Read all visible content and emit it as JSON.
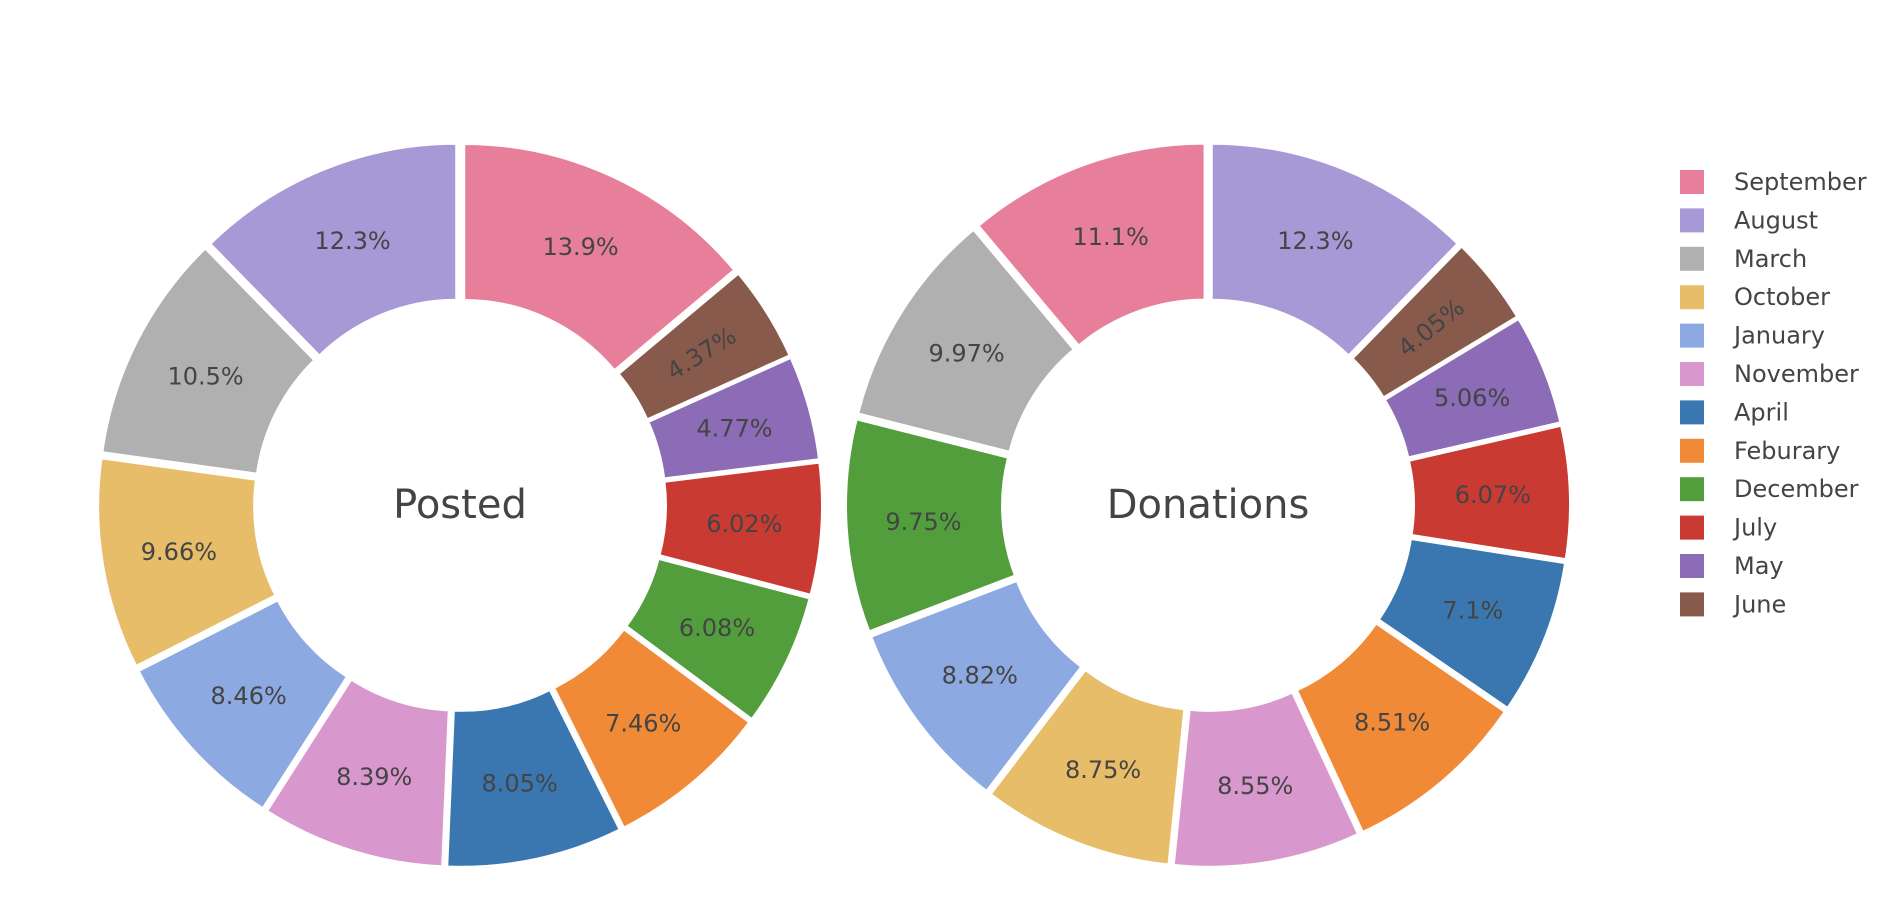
{
  "chart_data": [
    {
      "type": "pie",
      "hole": true,
      "title": "Posted",
      "slices": [
        {
          "label": "September",
          "value": 13.9,
          "text": "13.9%",
          "color": "#e87f9a"
        },
        {
          "label": "June",
          "value": 4.37,
          "text": "4.37%",
          "color": "#875a4c"
        },
        {
          "label": "May",
          "value": 4.77,
          "text": "4.77%",
          "color": "#8c6bb7"
        },
        {
          "label": "July",
          "value": 6.02,
          "text": "6.02%",
          "color": "#c93a32"
        },
        {
          "label": "December",
          "value": 6.08,
          "text": "6.08%",
          "color": "#529e3c"
        },
        {
          "label": "Feburary",
          "value": 7.46,
          "text": "7.46%",
          "color": "#f08a36"
        },
        {
          "label": "April",
          "value": 8.05,
          "text": "8.05%",
          "color": "#3a77b0"
        },
        {
          "label": "November",
          "value": 8.39,
          "text": "8.39%",
          "color": "#d897cd"
        },
        {
          "label": "January",
          "value": 8.46,
          "text": "8.46%",
          "color": "#8ca9e2"
        },
        {
          "label": "October",
          "value": 9.66,
          "text": "9.66%",
          "color": "#e7bd69"
        },
        {
          "label": "March",
          "value": 10.5,
          "text": "10.5%",
          "color": "#b0b0b0"
        },
        {
          "label": "August",
          "value": 12.3,
          "text": "12.3%",
          "color": "#a798d6"
        }
      ]
    },
    {
      "type": "pie",
      "hole": true,
      "title": "Donations",
      "slices": [
        {
          "label": "August",
          "value": 12.3,
          "text": "12.3%",
          "color": "#a798d6"
        },
        {
          "label": "June",
          "value": 4.05,
          "text": "4.05%",
          "color": "#875a4c"
        },
        {
          "label": "May",
          "value": 5.06,
          "text": "5.06%",
          "color": "#8c6bb7"
        },
        {
          "label": "July",
          "value": 6.07,
          "text": "6.07%",
          "color": "#c93a32"
        },
        {
          "label": "April",
          "value": 7.1,
          "text": "7.1%",
          "color": "#3a77b0"
        },
        {
          "label": "Feburary",
          "value": 8.51,
          "text": "8.51%",
          "color": "#f08a36"
        },
        {
          "label": "November",
          "value": 8.55,
          "text": "8.55%",
          "color": "#d897cd"
        },
        {
          "label": "October",
          "value": 8.75,
          "text": "8.75%",
          "color": "#e7bd69"
        },
        {
          "label": "January",
          "value": 8.82,
          "text": "8.82%",
          "color": "#8ca9e2"
        },
        {
          "label": "December",
          "value": 9.75,
          "text": "9.75%",
          "color": "#529e3c"
        },
        {
          "label": "March",
          "value": 9.97,
          "text": "9.97%",
          "color": "#b0b0b0"
        },
        {
          "label": "September",
          "value": 11.1,
          "text": "11.1%",
          "color": "#e87f9a"
        }
      ]
    }
  ],
  "legend": {
    "placement": "right",
    "items": [
      {
        "label": "September",
        "color": "#e87f9a"
      },
      {
        "label": "August",
        "color": "#a798d6"
      },
      {
        "label": "March",
        "color": "#b0b0b0"
      },
      {
        "label": "October",
        "color": "#e7bd69"
      },
      {
        "label": "January",
        "color": "#8ca9e2"
      },
      {
        "label": "November",
        "color": "#d897cd"
      },
      {
        "label": "April",
        "color": "#3a77b0"
      },
      {
        "label": "Feburary",
        "color": "#f08a36"
      },
      {
        "label": "December",
        "color": "#529e3c"
      },
      {
        "label": "July",
        "color": "#c93a32"
      },
      {
        "label": "May",
        "color": "#8c6bb7"
      },
      {
        "label": "June",
        "color": "#875a4c"
      }
    ]
  }
}
